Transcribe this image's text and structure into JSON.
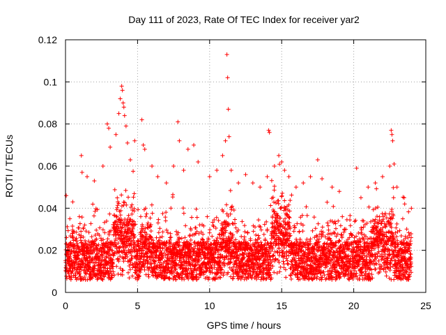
{
  "chart_data": {
    "type": "scatter",
    "title": "Day 111 of 2023, Rate Of TEC Index for receiver yar2",
    "xlabel": "GPS time / hours",
    "ylabel": "ROTI / TECUs",
    "xlim": [
      0,
      25
    ],
    "ylim": [
      0,
      0.12
    ],
    "x_ticks": [
      "0",
      "5",
      "10",
      "15",
      "20",
      "25"
    ],
    "y_ticks": [
      "0",
      "0.02",
      "0.04",
      "0.06",
      "0.08",
      "0.1",
      "0.12"
    ],
    "x_tick_values": [
      0,
      5,
      10,
      15,
      20,
      25
    ],
    "y_tick_values": [
      0,
      0.02,
      0.04,
      0.06,
      0.08,
      0.1,
      0.12
    ],
    "grid": true,
    "marker": "+",
    "marker_color": "#ff0000",
    "x_data_range": [
      0,
      24
    ],
    "series": [
      {
        "name": "",
        "points": [
          [
            0.05,
            0.046
          ],
          [
            0.3,
            0.035
          ],
          [
            0.5,
            0.043
          ],
          [
            1.1,
            0.065
          ],
          [
            1.15,
            0.057
          ],
          [
            1.5,
            0.055
          ],
          [
            2.0,
            0.053
          ],
          [
            2.6,
            0.06
          ],
          [
            2.9,
            0.08
          ],
          [
            3.0,
            0.078
          ],
          [
            3.1,
            0.069
          ],
          [
            3.5,
            0.075
          ],
          [
            3.7,
            0.085
          ],
          [
            3.8,
            0.092
          ],
          [
            3.9,
            0.098
          ],
          [
            3.95,
            0.096
          ],
          [
            4.0,
            0.09
          ],
          [
            4.05,
            0.088
          ],
          [
            4.1,
            0.084
          ],
          [
            4.2,
            0.079
          ],
          [
            4.3,
            0.071
          ],
          [
            4.5,
            0.063
          ],
          [
            4.8,
            0.072
          ],
          [
            5.3,
            0.082
          ],
          [
            5.4,
            0.07
          ],
          [
            5.5,
            0.068
          ],
          [
            6.0,
            0.06
          ],
          [
            6.4,
            0.055
          ],
          [
            7.0,
            0.052
          ],
          [
            7.5,
            0.06
          ],
          [
            7.8,
            0.081
          ],
          [
            7.9,
            0.072
          ],
          [
            8.2,
            0.058
          ],
          [
            8.5,
            0.068
          ],
          [
            8.9,
            0.07
          ],
          [
            9.2,
            0.062
          ],
          [
            10.0,
            0.055
          ],
          [
            10.5,
            0.058
          ],
          [
            10.9,
            0.065
          ],
          [
            11.1,
            0.072
          ],
          [
            11.2,
            0.113
          ],
          [
            11.25,
            0.102
          ],
          [
            11.3,
            0.087
          ],
          [
            11.35,
            0.074
          ],
          [
            11.5,
            0.058
          ],
          [
            12.0,
            0.052
          ],
          [
            12.5,
            0.056
          ],
          [
            13.0,
            0.052
          ],
          [
            13.5,
            0.05
          ],
          [
            14.0,
            0.055
          ],
          [
            14.1,
            0.077
          ],
          [
            14.15,
            0.076
          ],
          [
            14.5,
            0.06
          ],
          [
            14.8,
            0.065
          ],
          [
            15.0,
            0.062
          ],
          [
            15.2,
            0.058
          ],
          [
            15.5,
            0.055
          ],
          [
            16.0,
            0.05
          ],
          [
            16.5,
            0.052
          ],
          [
            17.0,
            0.055
          ],
          [
            17.5,
            0.063
          ],
          [
            17.8,
            0.054
          ],
          [
            18.5,
            0.05
          ],
          [
            19.0,
            0.048
          ],
          [
            20.2,
            0.059
          ],
          [
            20.5,
            0.045
          ],
          [
            21.0,
            0.05
          ],
          [
            21.5,
            0.052
          ],
          [
            22.0,
            0.055
          ],
          [
            22.5,
            0.06
          ],
          [
            22.6,
            0.077
          ],
          [
            22.65,
            0.075
          ],
          [
            22.7,
            0.072
          ],
          [
            22.8,
            0.061
          ],
          [
            23.0,
            0.05
          ],
          [
            23.5,
            0.045
          ],
          [
            24.0,
            0.04
          ]
        ]
      }
    ]
  }
}
